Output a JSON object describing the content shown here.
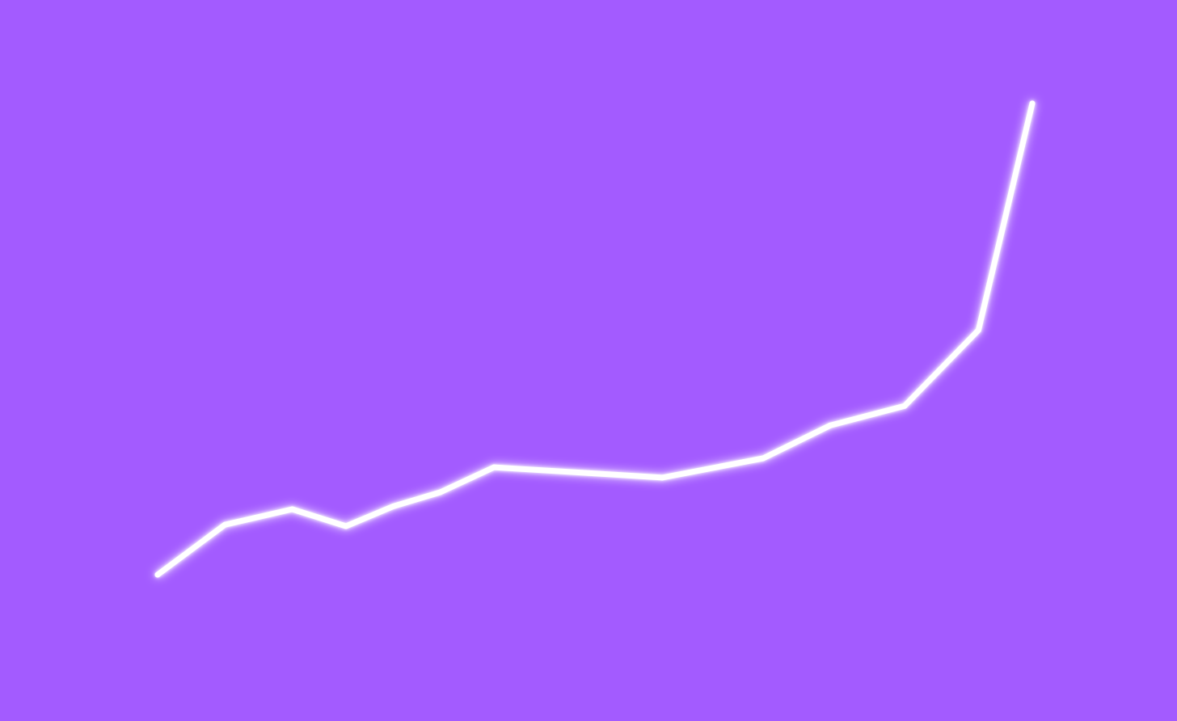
{
  "colors": {
    "background": "#a35bff",
    "line": "#ffffff",
    "glow": "#ffffff"
  },
  "chart_data": {
    "type": "line",
    "title": "",
    "xlabel": "",
    "ylabel": "",
    "grid": false,
    "legend": "none",
    "xlim": [
      0,
      13
    ],
    "ylim": [
      0,
      100
    ],
    "series": [
      {
        "x": [
          0,
          1,
          2,
          2.8,
          3.5,
          4.2,
          5,
          7.5,
          9,
          10,
          11.1,
          12.2,
          13
        ],
        "y": [
          0,
          10.6,
          13.9,
          10.3,
          14.5,
          17.5,
          22.8,
          20.6,
          24.7,
          31.7,
          35.8,
          51.9,
          100
        ]
      }
    ]
  }
}
